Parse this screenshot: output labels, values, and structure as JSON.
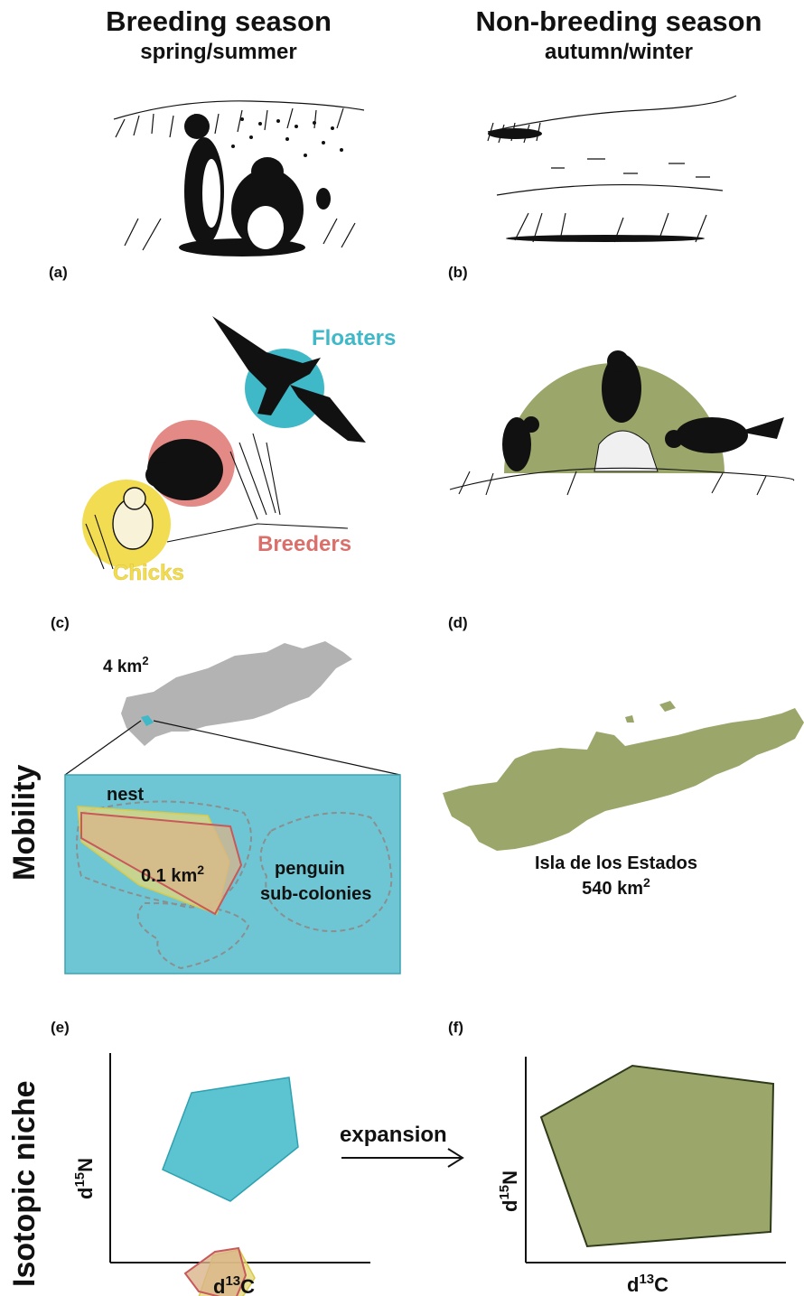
{
  "header": {
    "left_title": "Breeding season",
    "left_subtitle": "spring/summer",
    "right_title": "Non-breeding season",
    "right_subtitle": "autumn/winter"
  },
  "panels": {
    "a": "(a)",
    "b": "(b)",
    "c": "(c)",
    "d": "(d)",
    "e": "(e)",
    "f": "(f)"
  },
  "groups": {
    "floaters": "Floaters",
    "breeders": "Breeders",
    "chicks": "Chicks"
  },
  "mobility": {
    "row_label": "Mobility",
    "island_area_small": "4 km",
    "island_area_small_sup": "2",
    "nest_label": "nest",
    "home_range": "0.1 km",
    "home_range_sup": "2",
    "penguin_line1": "penguin",
    "penguin_line2": "sub-colonies",
    "island_name": "Isla de los Estados",
    "island_area_large": "540 km",
    "island_area_large_sup": "2"
  },
  "isotopic": {
    "row_label": "Isotopic niche",
    "y_axis_d": "d",
    "y_axis_sup": "15",
    "y_axis_el": "N",
    "x_axis_d": "d",
    "x_axis_sup": "13",
    "x_axis_el": "C",
    "expansion_label": "expansion"
  },
  "colors": {
    "floaters": "#3fb8c8",
    "breeders": "#e38a86",
    "chicks": "#f2dc52",
    "nonbreeding": "#9aa66a",
    "island_gray": "#b3b3b3",
    "breeders_text": "#d9706c"
  }
}
